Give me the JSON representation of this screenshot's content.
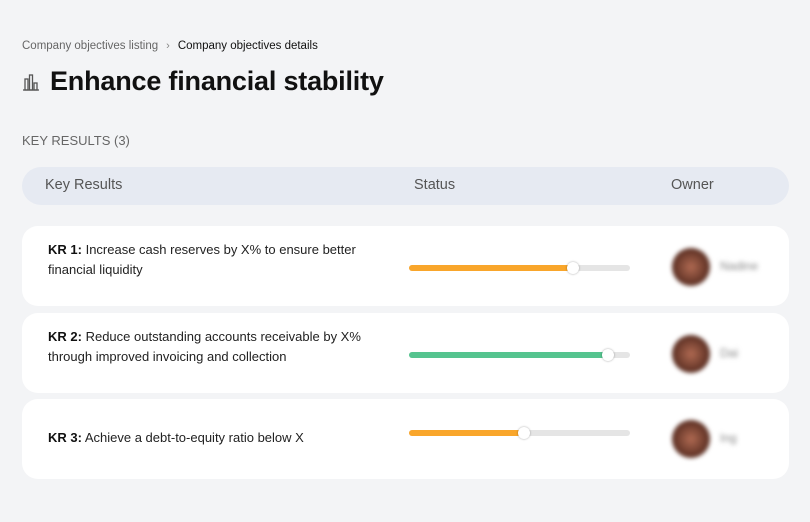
{
  "breadcrumb": {
    "items": [
      "Company objectives listing",
      "Company objectives details"
    ],
    "separator": "›"
  },
  "page": {
    "icon": "bar-chart-icon",
    "title": "Enhance financial stability"
  },
  "section_label": "KEY RESULTS (3)",
  "table": {
    "headers": [
      "Key Results",
      "Status",
      "Owner"
    ]
  },
  "key_results": [
    {
      "label": "KR 1:",
      "text": "Increase cash reserves by X% to ensure better financial liquidity",
      "progress_percent": 74,
      "color": "#f9a62b",
      "owner": "Nadine"
    },
    {
      "label": "KR 2:",
      "text": "Reduce outstanding accounts receivable by X% through improved invoicing and collection",
      "progress_percent": 90,
      "color": "#55c48f",
      "owner": "Dai"
    },
    {
      "label": "KR 3:",
      "text": "Achieve a debt-to-equity ratio below X",
      "progress_percent": 52,
      "color": "#f9a62b",
      "owner": "Ing"
    }
  ]
}
